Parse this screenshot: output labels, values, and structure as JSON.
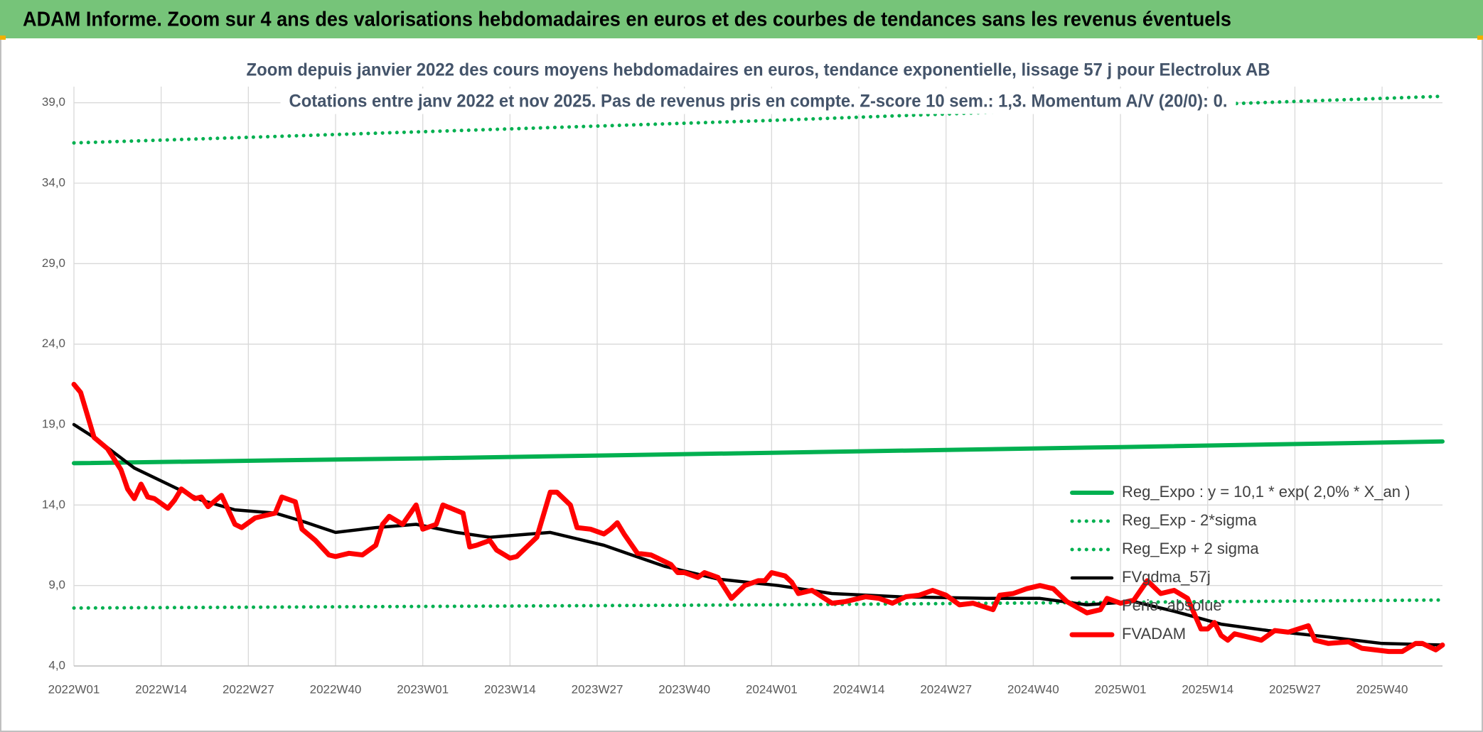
{
  "header": {
    "title": "ADAM Informe. Zoom sur 4 ans des valorisations hebdomadaires en euros et des courbes de tendances sans les revenus éventuels"
  },
  "chart_data": {
    "type": "line",
    "title": "Zoom depuis janvier 2022 des cours moyens hebdomadaires en euros, tendance exponentielle, lissage 57 j pour Electrolux AB",
    "subtitle": "Cotations entre janv 2022 et nov 2025. Pas de revenus pris en compte. Z-score 10 sem.: 1,3. Momentum A/V (20/0): 0.",
    "xlim": [
      0,
      204
    ],
    "xticks": [
      {
        "value": 0,
        "label": "2022W01"
      },
      {
        "value": 13,
        "label": "2022W14"
      },
      {
        "value": 26,
        "label": "2022W27"
      },
      {
        "value": 39,
        "label": "2022W40"
      },
      {
        "value": 52,
        "label": "2023W01"
      },
      {
        "value": 65,
        "label": "2023W14"
      },
      {
        "value": 78,
        "label": "2023W27"
      },
      {
        "value": 91,
        "label": "2023W40"
      },
      {
        "value": 104,
        "label": "2024W01"
      },
      {
        "value": 117,
        "label": "2024W14"
      },
      {
        "value": 130,
        "label": "2024W27"
      },
      {
        "value": 143,
        "label": "2024W40"
      },
      {
        "value": 156,
        "label": "2025W01"
      },
      {
        "value": 169,
        "label": "2025W14"
      },
      {
        "value": 182,
        "label": "2025W27"
      },
      {
        "value": 195,
        "label": "2025W40"
      }
    ],
    "ylim": [
      4,
      40
    ],
    "yticks": [
      {
        "value": 4,
        "label": "4,0"
      },
      {
        "value": 9,
        "label": "9,0"
      },
      {
        "value": 14,
        "label": "14,0"
      },
      {
        "value": 19,
        "label": "19,0"
      },
      {
        "value": 24,
        "label": "24,0"
      },
      {
        "value": 29,
        "label": "29,0"
      },
      {
        "value": 34,
        "label": "34,0"
      },
      {
        "value": 39,
        "label": "39,0"
      }
    ],
    "grid": true,
    "legend": "lower right",
    "series": [
      {
        "name": "Reg_Expo : y = 10,1 * exp( 2,0% *  X_an )",
        "color": "#00b050",
        "style": "solid",
        "x": [
          0,
          52,
          104,
          156,
          204
        ],
        "values": [
          16.6,
          16.9,
          17.25,
          17.6,
          17.95
        ]
      },
      {
        "name": "Reg_Exp - 2*sigma",
        "color": "#00b050",
        "style": "dotted",
        "x": [
          0,
          104,
          204
        ],
        "values": [
          7.6,
          7.8,
          8.1
        ]
      },
      {
        "name": "Reg_Exp + 2 sigma",
        "color": "#00b050",
        "style": "dotted",
        "x": [
          0,
          52,
          104,
          156,
          204
        ],
        "values": [
          36.5,
          37.2,
          37.9,
          38.7,
          39.4
        ]
      },
      {
        "name": "FVgdma_57j",
        "color": "#000000",
        "style": "solid",
        "x": [
          0,
          3,
          9,
          14,
          19,
          24,
          30,
          34,
          39,
          45,
          51,
          57,
          62,
          68,
          71,
          79,
          88,
          96,
          105,
          113,
          123,
          136,
          144,
          151,
          158,
          164,
          171,
          178,
          187,
          195,
          204
        ],
        "values": [
          19.0,
          18.2,
          16.3,
          15.3,
          14.3,
          13.7,
          13.5,
          13.0,
          12.3,
          12.6,
          12.8,
          12.3,
          12.0,
          12.2,
          12.3,
          11.5,
          10.2,
          9.4,
          9.0,
          8.5,
          8.3,
          8.2,
          8.2,
          7.8,
          8.0,
          7.4,
          6.6,
          6.2,
          5.8,
          5.4,
          5.3
        ]
      },
      {
        "name": "Perio. absolue",
        "color": "#ffffff",
        "style": "none",
        "x": [],
        "values": []
      },
      {
        "name": "FVADAM",
        "color": "#ff0000",
        "style": "solid",
        "x": [
          0,
          1,
          3,
          5,
          7,
          8,
          9,
          10,
          11,
          12,
          14,
          15,
          16,
          18,
          19,
          20,
          22,
          24,
          25,
          27,
          30,
          31,
          33,
          34,
          36,
          38,
          39,
          41,
          43,
          45,
          46,
          47,
          49,
          51,
          52,
          54,
          55,
          58,
          59,
          60,
          62,
          63,
          65,
          66,
          67,
          69,
          71,
          72,
          74,
          75,
          77,
          79,
          80,
          81,
          82,
          84,
          86,
          87,
          89,
          90,
          91,
          93,
          94,
          96,
          98,
          100,
          102,
          103,
          104,
          106,
          107,
          108,
          110,
          113,
          115,
          118,
          120,
          122,
          124,
          126,
          128,
          130,
          132,
          134,
          137,
          138,
          140,
          142,
          144,
          146,
          148,
          151,
          153,
          154,
          156,
          158,
          160,
          162,
          164,
          166,
          168,
          169,
          170,
          171,
          172,
          173,
          175,
          177,
          179,
          181,
          184,
          185,
          187,
          190,
          192,
          196,
          198,
          200,
          201,
          203,
          204
        ],
        "values": [
          21.5,
          21.0,
          18.2,
          17.5,
          16.2,
          15.0,
          14.4,
          15.3,
          14.5,
          14.4,
          13.8,
          14.3,
          15.0,
          14.4,
          14.5,
          13.9,
          14.6,
          12.8,
          12.6,
          13.2,
          13.5,
          14.5,
          14.2,
          12.5,
          11.8,
          10.9,
          10.8,
          11.0,
          10.9,
          11.5,
          12.8,
          13.3,
          12.8,
          14.0,
          12.5,
          12.8,
          14.0,
          13.5,
          11.4,
          11.5,
          11.8,
          11.2,
          10.7,
          10.8,
          11.2,
          12.0,
          14.8,
          14.8,
          14.0,
          12.6,
          12.5,
          12.2,
          12.5,
          12.9,
          12.2,
          11.0,
          10.9,
          10.7,
          10.3,
          9.8,
          9.8,
          9.5,
          9.8,
          9.5,
          8.2,
          9.0,
          9.3,
          9.3,
          9.8,
          9.6,
          9.2,
          8.5,
          8.7,
          7.9,
          8.0,
          8.3,
          8.2,
          7.9,
          8.3,
          8.4,
          8.7,
          8.4,
          7.8,
          7.9,
          7.5,
          8.4,
          8.5,
          8.8,
          9.0,
          8.8,
          8.0,
          7.3,
          7.5,
          8.2,
          7.9,
          8.1,
          9.3,
          8.5,
          8.7,
          8.2,
          6.3,
          6.3,
          6.7,
          5.9,
          5.6,
          6.0,
          5.8,
          5.6,
          6.2,
          6.1,
          6.5,
          5.6,
          5.4,
          5.5,
          5.1,
          4.9,
          4.9,
          5.4,
          5.4,
          5.0,
          5.3
        ]
      }
    ]
  }
}
